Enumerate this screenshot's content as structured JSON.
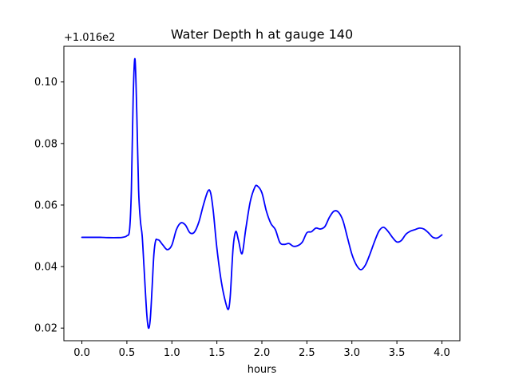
{
  "chart_data": {
    "type": "line",
    "title": "Water Depth h at gauge 140",
    "xlabel": "hours",
    "ylabel": "",
    "y_offset_label": "+1.016e2",
    "xlim": [
      -0.2,
      4.2
    ],
    "ylim": [
      0.0159,
      0.1116
    ],
    "xticks": [
      0.0,
      0.5,
      1.0,
      1.5,
      2.0,
      2.5,
      3.0,
      3.5,
      4.0
    ],
    "xtick_labels": [
      "0.0",
      "0.5",
      "1.0",
      "1.5",
      "2.0",
      "2.5",
      "3.0",
      "3.5",
      "4.0"
    ],
    "yticks": [
      0.02,
      0.04,
      0.06,
      0.08,
      0.1
    ],
    "ytick_labels": [
      "0.02",
      "0.04",
      "0.06",
      "0.08",
      "0.10"
    ],
    "grid": false,
    "series": [
      {
        "color": "#0000ff",
        "x": [
          0.0,
          0.1,
          0.2,
          0.3,
          0.4,
          0.45,
          0.5,
          0.53,
          0.55,
          0.57,
          0.59,
          0.61,
          0.63,
          0.65,
          0.67,
          0.69,
          0.72,
          0.74,
          0.76,
          0.78,
          0.8,
          0.82,
          0.84,
          0.86,
          0.9,
          0.95,
          1.0,
          1.05,
          1.1,
          1.15,
          1.2,
          1.25,
          1.3,
          1.35,
          1.4,
          1.43,
          1.46,
          1.5,
          1.55,
          1.6,
          1.63,
          1.65,
          1.68,
          1.71,
          1.74,
          1.78,
          1.82,
          1.87,
          1.92,
          1.95,
          2.0,
          2.05,
          2.1,
          2.15,
          2.2,
          2.25,
          2.3,
          2.35,
          2.4,
          2.45,
          2.5,
          2.55,
          2.6,
          2.65,
          2.7,
          2.75,
          2.8,
          2.85,
          2.9,
          2.95,
          3.0,
          3.05,
          3.1,
          3.15,
          3.2,
          3.25,
          3.3,
          3.35,
          3.4,
          3.45,
          3.5,
          3.55,
          3.6,
          3.65,
          3.7,
          3.75,
          3.8,
          3.85,
          3.9,
          3.95,
          4.0
        ],
        "values": [
          0.0495,
          0.0495,
          0.0495,
          0.0494,
          0.0494,
          0.0495,
          0.05,
          0.052,
          0.065,
          0.095,
          0.1075,
          0.09,
          0.065,
          0.055,
          0.05,
          0.04,
          0.025,
          0.02,
          0.023,
          0.033,
          0.044,
          0.0485,
          0.0487,
          0.0485,
          0.047,
          0.0455,
          0.047,
          0.052,
          0.0542,
          0.0535,
          0.051,
          0.0512,
          0.0545,
          0.06,
          0.0645,
          0.064,
          0.058,
          0.046,
          0.035,
          0.028,
          0.0262,
          0.031,
          0.046,
          0.0514,
          0.0485,
          0.0442,
          0.052,
          0.061,
          0.0657,
          0.0662,
          0.064,
          0.058,
          0.054,
          0.052,
          0.0478,
          0.0472,
          0.0475,
          0.0466,
          0.0468,
          0.048,
          0.051,
          0.0513,
          0.0525,
          0.0522,
          0.053,
          0.056,
          0.058,
          0.0577,
          0.055,
          0.0495,
          0.044,
          0.0405,
          0.039,
          0.0405,
          0.044,
          0.048,
          0.0515,
          0.0528,
          0.0515,
          0.0495,
          0.048,
          0.0485,
          0.0505,
          0.0515,
          0.052,
          0.0525,
          0.0522,
          0.051,
          0.0495,
          0.0493,
          0.0503
        ]
      }
    ]
  }
}
